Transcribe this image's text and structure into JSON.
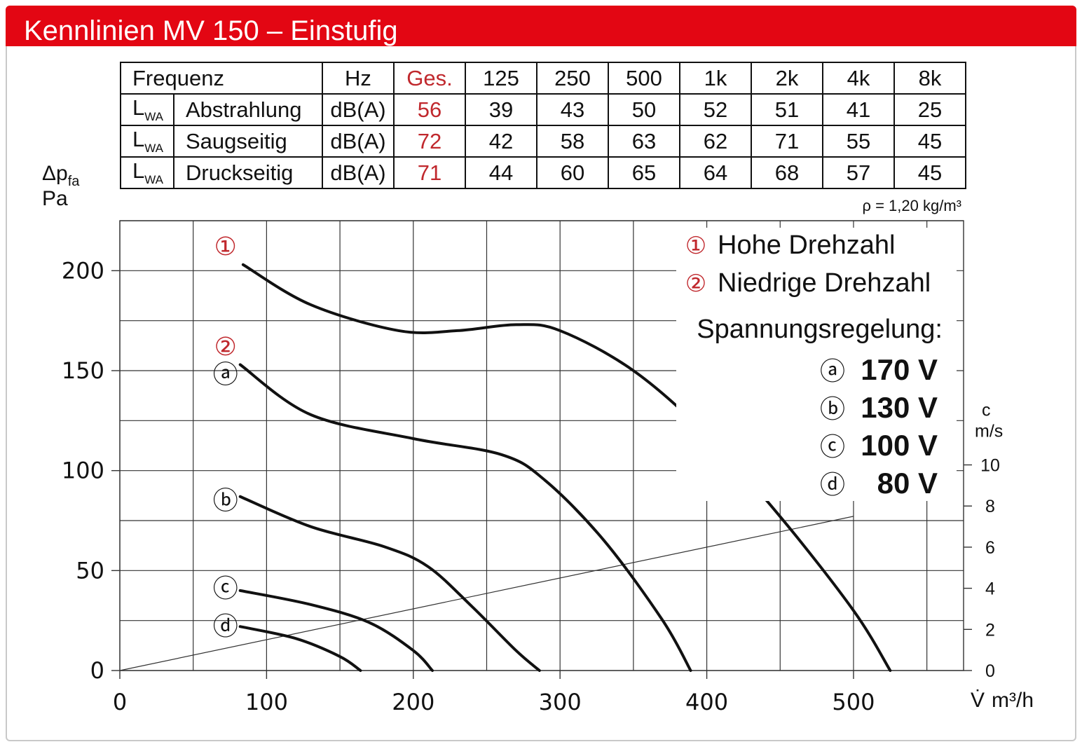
{
  "header": {
    "title": "Kennlinien MV 150 – Einstufig"
  },
  "table": {
    "header": [
      "Frequenz",
      "Hz",
      "Ges.",
      "125",
      "250",
      "500",
      "1k",
      "2k",
      "4k",
      "8k"
    ],
    "rows": [
      {
        "sym": "L",
        "sub": "WA",
        "label": "Abstrahlung",
        "unit": "dB(A)",
        "total": "56",
        "values": [
          "39",
          "43",
          "50",
          "52",
          "51",
          "41",
          "25"
        ]
      },
      {
        "sym": "L",
        "sub": "WA",
        "label": "Saugseitig",
        "unit": "dB(A)",
        "total": "72",
        "values": [
          "42",
          "58",
          "63",
          "62",
          "71",
          "55",
          "45"
        ]
      },
      {
        "sym": "L",
        "sub": "WA",
        "label": "Druckseitig",
        "unit": "dB(A)",
        "total": "71",
        "values": [
          "44",
          "60",
          "65",
          "64",
          "68",
          "57",
          "45"
        ]
      }
    ]
  },
  "density_note": "ρ = 1,20 kg/m³",
  "colors": {
    "brand_red": "#e30613",
    "label_red": "#c0282d"
  },
  "chart_data": {
    "type": "line",
    "ylabel": "Δp",
    "ylabel_sub": "fa",
    "ylabel_unit": "Pa",
    "xlabel": "V̇",
    "xlabel_unit": "m³/h",
    "xlim": [
      0,
      575
    ],
    "ylim": [
      0,
      225
    ],
    "x_ticks": [
      0,
      100,
      200,
      300,
      400,
      500
    ],
    "y_ticks": [
      0,
      50,
      100,
      150,
      200
    ],
    "grid": true,
    "secondary_axis": {
      "label": "c",
      "unit": "m/s",
      "ticks": [
        0,
        2,
        4,
        6,
        8,
        10
      ],
      "max_per_x": 10.5
    },
    "velocity_line": {
      "x": [
        0,
        500
      ],
      "y": [
        0,
        7.5
      ]
    },
    "series": [
      {
        "marker": "①",
        "x": [
          84,
          130,
          190,
          230,
          270,
          300,
          350,
          400,
          450,
          500,
          525
        ],
        "y": [
          203,
          183,
          170,
          170,
          173,
          170,
          150,
          118,
          77,
          30,
          0
        ]
      },
      {
        "marker": "ⓐ",
        "x": [
          82,
          130,
          200,
          260,
          290,
          330,
          370,
          389
        ],
        "y": [
          153,
          128,
          116,
          108,
          95,
          65,
          25,
          0
        ]
      },
      {
        "marker": "ⓑ",
        "x": [
          82,
          130,
          180,
          210,
          240,
          270,
          286
        ],
        "y": [
          87,
          72,
          62,
          52,
          32,
          10,
          0
        ]
      },
      {
        "marker": "ⓒ",
        "x": [
          82,
          130,
          170,
          200,
          213
        ],
        "y": [
          40,
          33,
          24,
          10,
          0
        ]
      },
      {
        "marker": "ⓓ",
        "x": [
          82,
          120,
          150,
          164
        ],
        "y": [
          22,
          16,
          7,
          0
        ]
      }
    ],
    "legend": {
      "position": "top-right",
      "items": [
        {
          "marker": "①",
          "label": "Hohe Drehzahl"
        },
        {
          "marker": "②",
          "label": "Niedrige Drehzahl"
        }
      ],
      "control_title": "Spannungsregelung:",
      "voltages": [
        {
          "marker": "ⓐ",
          "label": "170 V"
        },
        {
          "marker": "ⓑ",
          "label": "130 V"
        },
        {
          "marker": "ⓒ",
          "label": "100 V"
        },
        {
          "marker": "ⓓ",
          "label": "80 V"
        }
      ]
    },
    "curve_labels": [
      {
        "marker": "①",
        "x": 72,
        "y": 212
      },
      {
        "marker": "②",
        "x": 72,
        "y": 162
      },
      {
        "marker": "ⓐ",
        "x": 72,
        "y": 148
      },
      {
        "marker": "ⓑ",
        "x": 72,
        "y": 85
      },
      {
        "marker": "ⓒ",
        "x": 72,
        "y": 41
      },
      {
        "marker": "ⓓ",
        "x": 72,
        "y": 22
      }
    ]
  }
}
